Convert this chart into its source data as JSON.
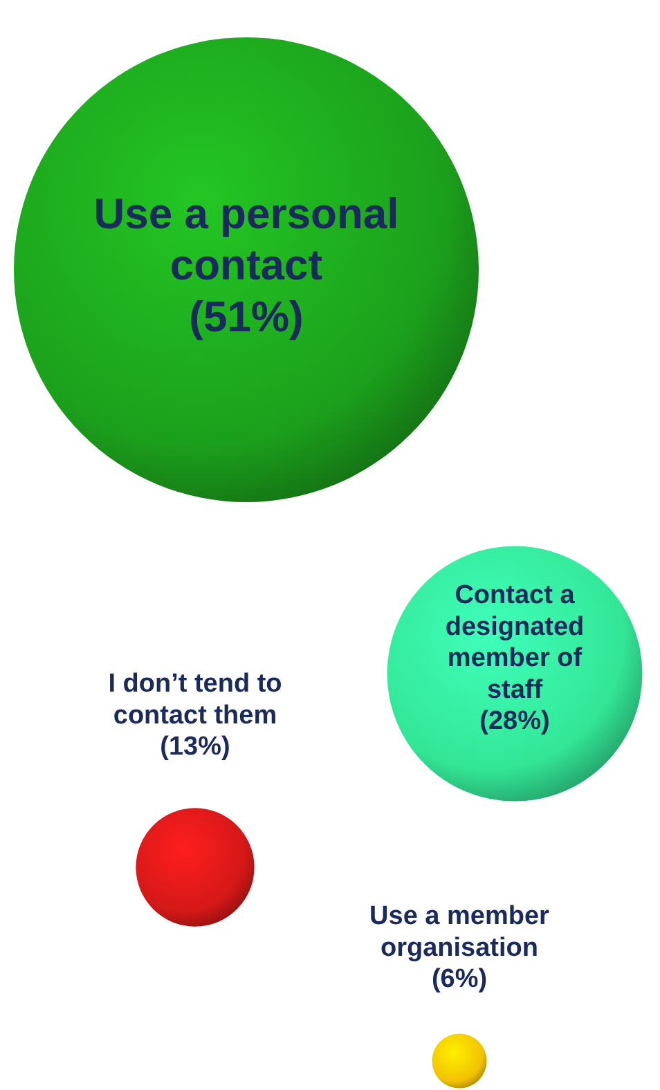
{
  "chart_data": {
    "type": "other",
    "categories": [
      "Use a personal contact",
      "Contact a designated member of staff",
      "I don’t tend to contact them",
      "Use a member organisation"
    ],
    "values": [
      51,
      28,
      13,
      6
    ],
    "value_labels": [
      "(51%)",
      "(28%)",
      "(13%)",
      "(6%)"
    ],
    "colors": [
      "#1ca01c",
      "#33e696",
      "#d41818",
      "#f2c200"
    ]
  }
}
